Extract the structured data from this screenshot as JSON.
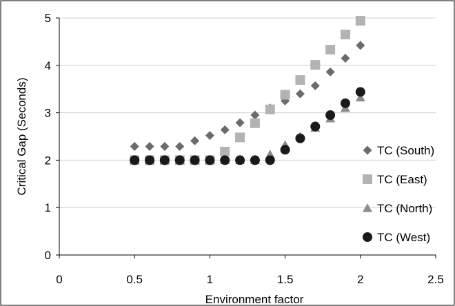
{
  "chart_data": {
    "type": "scatter",
    "title": "",
    "xlabel": "Environment factor",
    "ylabel": "Critical Gap (Seconds)",
    "xlim": [
      0,
      2.5
    ],
    "ylim": [
      0,
      5
    ],
    "xticks": [
      0,
      0.5,
      1,
      1.5,
      2,
      2.5
    ],
    "xtick_labels": [
      "0",
      "0.5",
      "1",
      "1.5",
      "2",
      "2.5"
    ],
    "yticks": [
      0,
      1,
      2,
      3,
      4,
      5
    ],
    "ytick_labels": [
      "0",
      "1",
      "2",
      "3",
      "4",
      "5"
    ],
    "grid": "horizontal",
    "legend_position": "right",
    "series": [
      {
        "name": "TC (South)",
        "marker": "diamond",
        "color": "#6b6b6b",
        "x": [
          0.5,
          0.6,
          0.7,
          0.8,
          0.9,
          1.0,
          1.1,
          1.2,
          1.3,
          1.4,
          1.5,
          1.6,
          1.7,
          1.8,
          1.9,
          2.0
        ],
        "y": [
          2.29,
          2.29,
          2.29,
          2.29,
          2.41,
          2.52,
          2.64,
          2.79,
          2.95,
          3.1,
          3.25,
          3.4,
          3.57,
          3.86,
          4.15,
          4.42
        ]
      },
      {
        "name": "TC (East)",
        "marker": "square",
        "color": "#b3b3b3",
        "x": [
          0.5,
          0.6,
          0.7,
          0.8,
          0.9,
          1.0,
          1.1,
          1.2,
          1.3,
          1.4,
          1.5,
          1.6,
          1.7,
          1.8,
          1.9,
          2.0
        ],
        "y": [
          2.0,
          2.0,
          2.0,
          2.0,
          2.0,
          2.0,
          2.18,
          2.48,
          2.78,
          3.07,
          3.38,
          3.69,
          4.01,
          4.33,
          4.65,
          4.94
        ]
      },
      {
        "name": "TC (North)",
        "marker": "triangle",
        "color": "#8c8c8c",
        "x": [
          0.5,
          0.6,
          0.7,
          0.8,
          0.9,
          1.0,
          1.1,
          1.2,
          1.3,
          1.4,
          1.5,
          1.6,
          1.7,
          1.8,
          1.9,
          2.0
        ],
        "y": [
          2.0,
          2.0,
          2.0,
          2.0,
          2.0,
          2.0,
          2.0,
          2.0,
          2.0,
          2.12,
          2.32,
          2.5,
          2.68,
          2.88,
          3.1,
          3.32
        ]
      },
      {
        "name": "TC (West)",
        "marker": "circle",
        "color": "#1a1a1a",
        "x": [
          0.5,
          0.6,
          0.7,
          0.8,
          0.9,
          1.0,
          1.1,
          1.2,
          1.3,
          1.4,
          1.5,
          1.6,
          1.7,
          1.8,
          1.9,
          2.0
        ],
        "y": [
          2.0,
          2.0,
          2.0,
          2.0,
          2.0,
          2.0,
          2.0,
          2.0,
          2.0,
          2.0,
          2.22,
          2.46,
          2.71,
          2.95,
          3.2,
          3.44
        ]
      }
    ]
  }
}
